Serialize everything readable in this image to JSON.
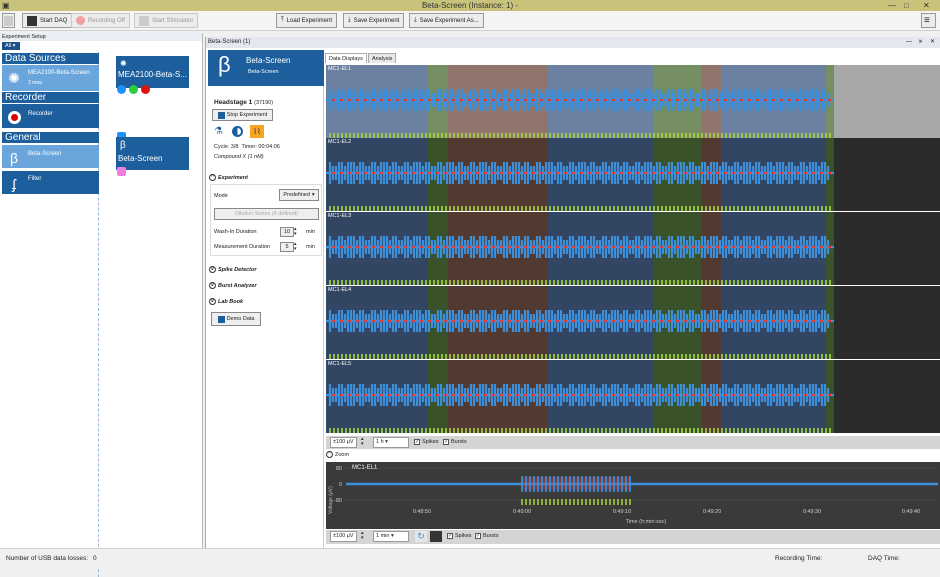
{
  "app": {
    "title": "Beta-Screen (Instance: 1) -",
    "min": "—",
    "max": "□",
    "close": "✕"
  },
  "toolbar": {
    "start_daq": "Start DAQ",
    "recording_off": "Recording Off",
    "start_stimulator": "Start Stimulator",
    "load_experiment": "Load Experiment",
    "save_experiment": "Save Experiment",
    "save_experiment_as": "Save Experiment As..."
  },
  "left": {
    "header": "Experiment Setup",
    "filter": "All",
    "categories": {
      "data_sources": "Data Sources",
      "recorder": "Recorder",
      "general": "General"
    },
    "items": {
      "mea_title": "MEA2100-Beta-Screen",
      "mea_sub": "2 mea",
      "recorder": "Recorder",
      "beta_screen": "Beta-Screen",
      "filter": "Filter"
    },
    "nodes": {
      "mea": "MEA2100-Beta-S...",
      "beta": "Beta-Screen"
    }
  },
  "panel": {
    "tab_title": "Beta-Screen (1)",
    "pin": "—",
    "pin2": "⨯",
    "close": "✕",
    "logo": "β",
    "name": "Beta-Screen",
    "name_sub": "Beta-Screen",
    "headstage": "Headstage 1",
    "headstage_id": "(37190)",
    "stop": "Stop Experiment",
    "cycle": "Cycle: 3/8",
    "timer": "Timer: 00:04:06",
    "compound": "Compound X (1 nM)",
    "experiment": "Experiment",
    "mode": "Mode",
    "mode_value": "Predefined",
    "dilution": "Dilution Series (8 defined)",
    "wash_in": "Wash-In Duration",
    "wash_in_val": "10",
    "meas": "Measurement Duration",
    "meas_val": "5",
    "min": "min",
    "spike_detector": "Spike Detector",
    "burst_analyzer": "Burst Analyzer",
    "lab_book": "Lab Book",
    "demo": "Demo Data"
  },
  "tabs": [
    "Data Displays",
    "Analysis"
  ],
  "channels": [
    "MC1-EL1",
    "MC1-EL2",
    "MC1-EL3",
    "MC1-EL4",
    "MC1-EL5"
  ],
  "strip": {
    "range": "±100 µV",
    "window": "1 h",
    "spikes": "Spikes",
    "bursts": "Bursts",
    "check": "✓"
  },
  "zoom": {
    "label": "Zoom",
    "channel": "MC1-EL1",
    "ylabel": "Voltage (µV)",
    "xlabel": "Time (h:min:sec)",
    "yticks": [
      "80",
      "0",
      "-80"
    ],
    "xticks": [
      "0:48:50",
      "0:49:00",
      "0:49:10",
      "0:49:20",
      "0:49:30",
      "0:49:40"
    ],
    "range": "±100 µV",
    "window": "1 min"
  },
  "status": {
    "usb": "Number of USB data losses:",
    "usb_val": "0",
    "rec_time": "Recording Time:",
    "daq_time": "DAQ Time:"
  },
  "colors": {
    "accent": "#1c5f9c",
    "signal": "#3c8fd8",
    "spike": "#e03a3a",
    "burst": "#a8d840"
  }
}
